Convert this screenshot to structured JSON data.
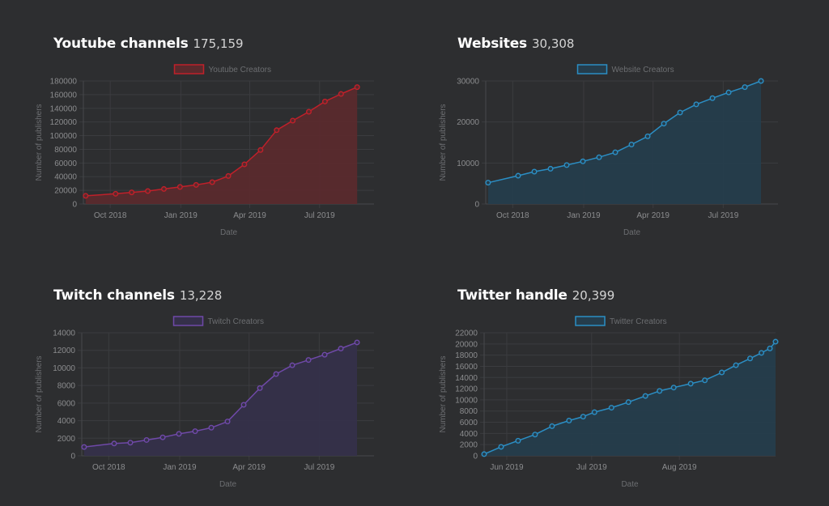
{
  "charts": [
    {
      "title": "Youtube channels",
      "count": "175,159",
      "legend": "Youtube Creators",
      "color": "#c0202a",
      "fill": "#5a2a2d",
      "xlabel": "Date",
      "ylabel": "Number of publishers"
    },
    {
      "title": "Websites",
      "count": "30,308",
      "legend": "Website Creators",
      "color": "#2b8ec4",
      "fill": "#253d4c",
      "xlabel": "Date",
      "ylabel": "Number of publishers"
    },
    {
      "title": "Twitch channels",
      "count": "13,228",
      "legend": "Twitch Creators",
      "color": "#6f49a8",
      "fill": "#35304a",
      "xlabel": "Date",
      "ylabel": "Number of publishers"
    },
    {
      "title": "Twitter handle",
      "count": "20,399",
      "legend": "Twitter Creators",
      "color": "#2b8ec4",
      "fill": "#253d4c",
      "xlabel": "Date",
      "ylabel": "Number of publishers"
    }
  ],
  "chart_data": [
    {
      "type": "area",
      "xlabel": "Date",
      "ylabel": "Number of publishers",
      "ylim": [
        0,
        180000
      ],
      "yticks": [
        0,
        20000,
        40000,
        60000,
        80000,
        100000,
        120000,
        140000,
        160000,
        180000
      ],
      "xlim": [
        "2018-08-27",
        "2019-09-10"
      ],
      "xticks": [
        {
          "date": "2018-10-01",
          "label": "Oct 2018"
        },
        {
          "date": "2019-01-01",
          "label": "Jan 2019"
        },
        {
          "date": "2019-04-01",
          "label": "Apr 2019"
        },
        {
          "date": "2019-07-01",
          "label": "Jul 2019"
        }
      ],
      "grid": true,
      "legend": "top-center",
      "series": [
        {
          "name": "Youtube Creators",
          "points": [
            {
              "x": "2018-08-30",
              "y": 12000
            },
            {
              "x": "2018-10-08",
              "y": 15000
            },
            {
              "x": "2018-10-29",
              "y": 17000
            },
            {
              "x": "2018-11-19",
              "y": 19000
            },
            {
              "x": "2018-12-10",
              "y": 22000
            },
            {
              "x": "2018-12-31",
              "y": 25000
            },
            {
              "x": "2019-01-21",
              "y": 28000
            },
            {
              "x": "2019-02-11",
              "y": 32000
            },
            {
              "x": "2019-03-04",
              "y": 41000
            },
            {
              "x": "2019-03-25",
              "y": 58000
            },
            {
              "x": "2019-04-15",
              "y": 79000
            },
            {
              "x": "2019-05-06",
              "y": 108000
            },
            {
              "x": "2019-05-27",
              "y": 122000
            },
            {
              "x": "2019-06-17",
              "y": 135000
            },
            {
              "x": "2019-07-08",
              "y": 150000
            },
            {
              "x": "2019-07-29",
              "y": 161000
            },
            {
              "x": "2019-08-19",
              "y": 171000
            }
          ]
        }
      ]
    },
    {
      "type": "area",
      "xlabel": "Date",
      "ylabel": "Number of publishers",
      "ylim": [
        0,
        30000
      ],
      "yticks": [
        0,
        10000,
        20000,
        30000
      ],
      "xlim": [
        "2018-08-27",
        "2019-09-10"
      ],
      "xticks": [
        {
          "date": "2018-10-01",
          "label": "Oct 2018"
        },
        {
          "date": "2019-01-01",
          "label": "Jan 2019"
        },
        {
          "date": "2019-04-01",
          "label": "Apr 2019"
        },
        {
          "date": "2019-07-01",
          "label": "Jul 2019"
        }
      ],
      "grid": true,
      "legend": "top-center",
      "series": [
        {
          "name": "Website Creators",
          "points": [
            {
              "x": "2018-08-30",
              "y": 5200
            },
            {
              "x": "2018-10-08",
              "y": 6900
            },
            {
              "x": "2018-10-29",
              "y": 7900
            },
            {
              "x": "2018-11-19",
              "y": 8600
            },
            {
              "x": "2018-12-10",
              "y": 9500
            },
            {
              "x": "2018-12-31",
              "y": 10400
            },
            {
              "x": "2019-01-21",
              "y": 11400
            },
            {
              "x": "2019-02-11",
              "y": 12600
            },
            {
              "x": "2019-03-04",
              "y": 14500
            },
            {
              "x": "2019-03-25",
              "y": 16500
            },
            {
              "x": "2019-04-15",
              "y": 19600
            },
            {
              "x": "2019-05-06",
              "y": 22300
            },
            {
              "x": "2019-05-27",
              "y": 24300
            },
            {
              "x": "2019-06-17",
              "y": 25800
            },
            {
              "x": "2019-07-08",
              "y": 27200
            },
            {
              "x": "2019-07-29",
              "y": 28500
            },
            {
              "x": "2019-08-19",
              "y": 30000
            }
          ]
        }
      ]
    },
    {
      "type": "area",
      "xlabel": "Date",
      "ylabel": "Number of publishers",
      "ylim": [
        0,
        14000
      ],
      "yticks": [
        0,
        2000,
        4000,
        6000,
        8000,
        10000,
        12000,
        14000
      ],
      "xlim": [
        "2018-08-27",
        "2019-09-10"
      ],
      "xticks": [
        {
          "date": "2018-10-01",
          "label": "Oct 2018"
        },
        {
          "date": "2019-01-01",
          "label": "Jan 2019"
        },
        {
          "date": "2019-04-01",
          "label": "Apr 2019"
        },
        {
          "date": "2019-07-01",
          "label": "Jul 2019"
        }
      ],
      "grid": true,
      "legend": "top-center",
      "series": [
        {
          "name": "Twitch Creators",
          "points": [
            {
              "x": "2018-08-30",
              "y": 1000
            },
            {
              "x": "2018-10-08",
              "y": 1400
            },
            {
              "x": "2018-10-29",
              "y": 1500
            },
            {
              "x": "2018-11-19",
              "y": 1800
            },
            {
              "x": "2018-12-10",
              "y": 2100
            },
            {
              "x": "2018-12-31",
              "y": 2500
            },
            {
              "x": "2019-01-21",
              "y": 2800
            },
            {
              "x": "2019-02-11",
              "y": 3200
            },
            {
              "x": "2019-03-04",
              "y": 3900
            },
            {
              "x": "2019-03-25",
              "y": 5800
            },
            {
              "x": "2019-04-15",
              "y": 7700
            },
            {
              "x": "2019-05-06",
              "y": 9300
            },
            {
              "x": "2019-05-27",
              "y": 10300
            },
            {
              "x": "2019-06-17",
              "y": 10900
            },
            {
              "x": "2019-07-08",
              "y": 11500
            },
            {
              "x": "2019-07-29",
              "y": 12200
            },
            {
              "x": "2019-08-19",
              "y": 12900
            }
          ]
        }
      ]
    },
    {
      "type": "area",
      "xlabel": "Date",
      "ylabel": "Number of publishers",
      "ylim": [
        0,
        22000
      ],
      "yticks": [
        0,
        2000,
        4000,
        6000,
        8000,
        10000,
        12000,
        14000,
        16000,
        18000,
        20000,
        22000
      ],
      "xlim": [
        "2019-05-24",
        "2019-09-04"
      ],
      "xticks": [
        {
          "date": "2019-06-01",
          "label": "Jun 2019"
        },
        {
          "date": "2019-07-01",
          "label": "Jul 2019"
        },
        {
          "date": "2019-08-01",
          "label": "Aug 2019"
        }
      ],
      "grid": true,
      "legend": "top-center",
      "series": [
        {
          "name": "Twitter Creators",
          "points": [
            {
              "x": "2019-05-24",
              "y": 300
            },
            {
              "x": "2019-05-30",
              "y": 1600
            },
            {
              "x": "2019-06-05",
              "y": 2700
            },
            {
              "x": "2019-06-11",
              "y": 3800
            },
            {
              "x": "2019-06-17",
              "y": 5300
            },
            {
              "x": "2019-06-23",
              "y": 6300
            },
            {
              "x": "2019-06-28",
              "y": 7000
            },
            {
              "x": "2019-07-02",
              "y": 7800
            },
            {
              "x": "2019-07-08",
              "y": 8600
            },
            {
              "x": "2019-07-14",
              "y": 9600
            },
            {
              "x": "2019-07-20",
              "y": 10700
            },
            {
              "x": "2019-07-25",
              "y": 11600
            },
            {
              "x": "2019-07-30",
              "y": 12200
            },
            {
              "x": "2019-08-05",
              "y": 12900
            },
            {
              "x": "2019-08-10",
              "y": 13500
            },
            {
              "x": "2019-08-16",
              "y": 14900
            },
            {
              "x": "2019-08-21",
              "y": 16200
            },
            {
              "x": "2019-08-26",
              "y": 17400
            },
            {
              "x": "2019-08-30",
              "y": 18400
            },
            {
              "x": "2019-09-02",
              "y": 19200
            },
            {
              "x": "2019-09-04",
              "y": 20400
            }
          ]
        }
      ]
    }
  ]
}
